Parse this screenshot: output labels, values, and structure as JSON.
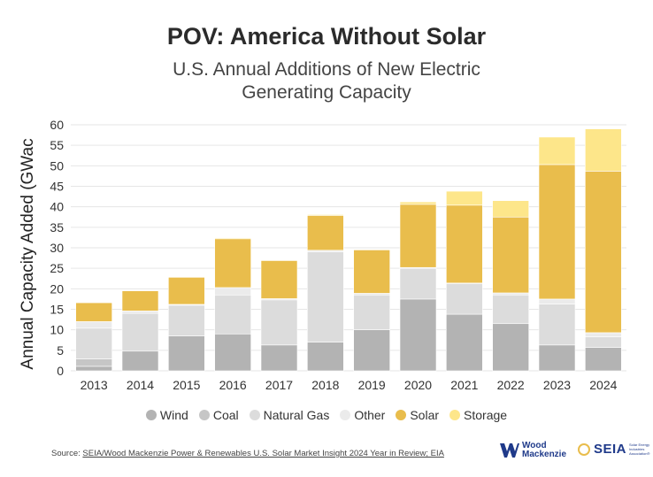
{
  "chart_data": {
    "type": "bar",
    "stacked": true,
    "title": "POV: America Without Solar",
    "subtitle_lines": [
      "U.S. Annual Additions of New Electric",
      "Generating Capacity"
    ],
    "ylabel": "Annual Capacity Added (GWac",
    "xlabel": "",
    "ylim": [
      0,
      60
    ],
    "yticks": [
      "0",
      "5",
      "10",
      "15",
      "20",
      "25",
      "30",
      "35",
      "40",
      "45",
      "50",
      "55",
      "60"
    ],
    "grid": true,
    "legend_position": "bottom",
    "categories": [
      "2013",
      "2014",
      "2015",
      "2016",
      "2017",
      "2018",
      "2019",
      "2020",
      "2021",
      "2022",
      "2023",
      "2024"
    ],
    "series": [
      {
        "name": "Wind",
        "color": "#b3b3b3",
        "values": [
          1.1,
          4.8,
          8.5,
          9.0,
          6.3,
          7.0,
          10.0,
          17.5,
          13.8,
          11.5,
          6.3,
          5.7
        ]
      },
      {
        "name": "Coal",
        "color": "#c6c6c6",
        "values": [
          1.8,
          0.0,
          0.0,
          0.0,
          0.0,
          0.0,
          0.0,
          0.0,
          0.0,
          0.0,
          0.0,
          0.0
        ]
      },
      {
        "name": "Natural Gas",
        "color": "#dcdcdc",
        "values": [
          7.5,
          9.2,
          7.5,
          9.5,
          11.0,
          22.0,
          8.5,
          7.5,
          7.5,
          7.0,
          10.0,
          2.6
        ]
      },
      {
        "name": "Other",
        "color": "#ebebeb",
        "values": [
          1.6,
          0.6,
          0.2,
          1.8,
          0.3,
          0.4,
          0.4,
          0.2,
          0.1,
          0.5,
          1.2,
          1.0
        ]
      },
      {
        "name": "Solar",
        "color": "#e9bd4c",
        "values": [
          4.6,
          4.9,
          6.6,
          11.9,
          9.3,
          8.5,
          10.6,
          15.4,
          19.0,
          18.5,
          32.8,
          39.4
        ]
      },
      {
        "name": "Storage",
        "color": "#fde68a",
        "values": [
          0.0,
          0.1,
          0.0,
          0.2,
          0.1,
          0.2,
          0.1,
          0.6,
          3.4,
          4.0,
          6.7,
          10.3
        ]
      }
    ]
  },
  "footer": {
    "source_prefix": "Source: ",
    "source_link": "SEIA/Wood Mackenzie Power & Renewables U.S. Solar Market Insight 2024 Year in Review; EIA"
  },
  "logos": {
    "wood_mackenzie_line1": "Wood",
    "wood_mackenzie_line2": "Mackenzie",
    "seia": "SEIA",
    "seia_tagline": "Solar Energy Industries Association®"
  },
  "colors": {
    "grid": "#e6e6e6",
    "axis_text": "#333333",
    "brand_blue": "#1f3a8a"
  }
}
